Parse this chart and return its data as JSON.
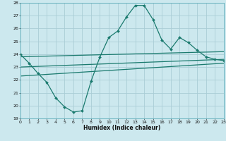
{
  "title": "",
  "xlabel": "Humidex (Indice chaleur)",
  "ylabel": "",
  "bg_color": "#cce8ee",
  "grid_color": "#aacdd6",
  "line_color": "#1a7a6e",
  "x_min": 0,
  "x_max": 23,
  "y_min": 19,
  "y_max": 28,
  "x_ticks": [
    0,
    1,
    2,
    3,
    4,
    5,
    6,
    7,
    8,
    9,
    10,
    11,
    12,
    13,
    14,
    15,
    16,
    17,
    18,
    19,
    20,
    21,
    22,
    23
  ],
  "y_ticks": [
    19,
    20,
    21,
    22,
    23,
    24,
    25,
    26,
    27,
    28
  ],
  "curve1_x": [
    0,
    1,
    2,
    3,
    4,
    5,
    6,
    7,
    8,
    9,
    10,
    11,
    12,
    13,
    14,
    15,
    16,
    17,
    18,
    19,
    20,
    21,
    22,
    23
  ],
  "curve1_y": [
    24.0,
    23.3,
    22.5,
    21.8,
    20.6,
    19.9,
    19.5,
    19.6,
    21.9,
    23.8,
    25.3,
    25.8,
    26.9,
    27.8,
    27.8,
    26.7,
    25.1,
    24.4,
    25.3,
    24.9,
    24.3,
    23.8,
    23.6,
    23.5
  ],
  "curve2_x": [
    0,
    23
  ],
  "curve2_y": [
    23.8,
    24.2
  ],
  "curve3_x": [
    0,
    23
  ],
  "curve3_y": [
    23.0,
    23.6
  ],
  "curve4_x": [
    0,
    23
  ],
  "curve4_y": [
    22.3,
    23.3
  ]
}
